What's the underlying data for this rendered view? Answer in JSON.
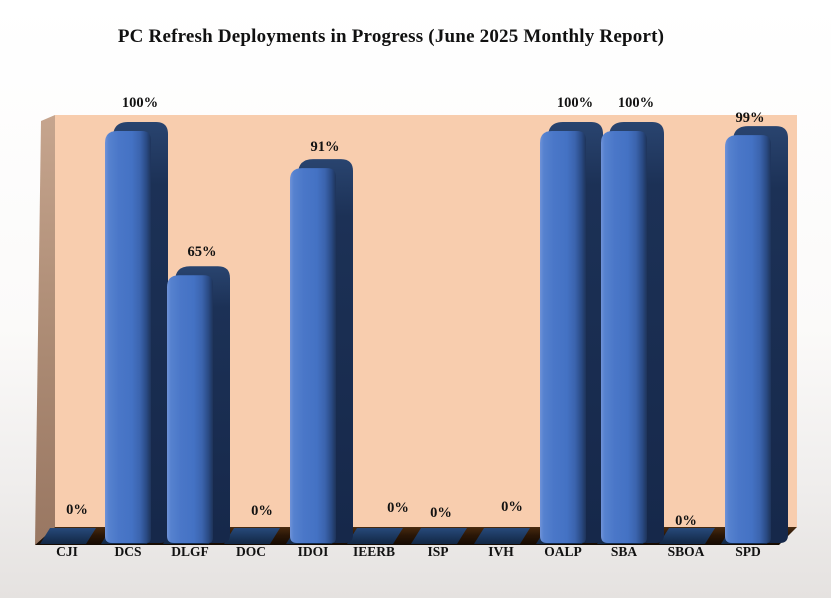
{
  "title": "PC Refresh Deployments in Progress (June 2025 Monthly Report)",
  "chart_data": {
    "type": "bar",
    "style": "3d-clustered-column",
    "title": "PC Refresh Deployments in Progress (June 2025 Monthly Report)",
    "categories": [
      "CJI",
      "DCS",
      "DLGF",
      "DOC",
      "IDOI",
      "IEERB",
      "ISP",
      "IVH",
      "OALP",
      "SBA",
      "SBOA",
      "SPD"
    ],
    "values": [
      0,
      100,
      65,
      0,
      91,
      0,
      0,
      0,
      100,
      100,
      0,
      99
    ],
    "data_labels": [
      "0%",
      "100%",
      "65%",
      "0%",
      "91%",
      "0%",
      "0%",
      "0%",
      "100%",
      "100%",
      "0%",
      "99%"
    ],
    "xlabel": "",
    "ylabel": "",
    "ylim": [
      0,
      100
    ],
    "grid": false,
    "legend": false,
    "colors": {
      "bar_front": "#4472C4",
      "bar_front_highlight": "#6F92D8",
      "bar_side": "#1B2F52",
      "back_wall": "#F8CDAE",
      "side_wall": "#AD8C75",
      "floor": "#2B1707",
      "floor_tile": "#1E3A60",
      "text": "#121212",
      "background_top": "#FFFFFF",
      "background_bottom": "#E6E3E1"
    }
  }
}
